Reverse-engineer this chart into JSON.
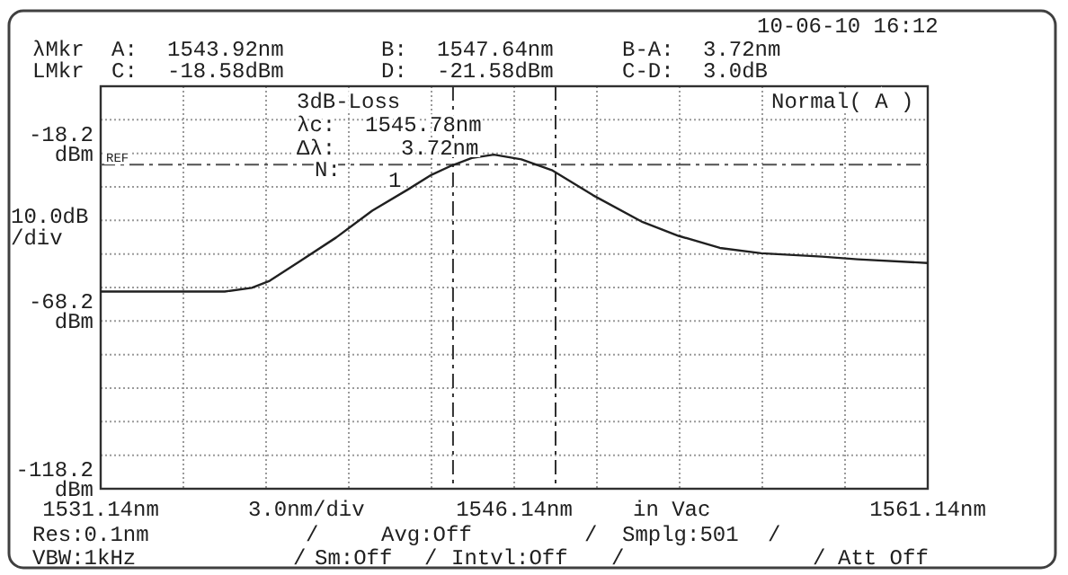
{
  "chart_data": {
    "type": "line",
    "x": [
      1531.14,
      1535.64,
      1536.62,
      1537.27,
      1538.38,
      1539.68,
      1540.99,
      1542.3,
      1543.14,
      1543.8,
      1544.6,
      1545.4,
      1546.4,
      1547.5,
      1549.0,
      1550.8,
      1552.1,
      1553.6,
      1555.1,
      1557.3,
      1558.6,
      1561.14
    ],
    "series": [
      {
        "color": "#202020",
        "values": [
          -59.4,
          -59.4,
          -58.3,
          -56.2,
          -50.3,
          -43.3,
          -35.3,
          -28.9,
          -24.6,
          -22.1,
          -19.6,
          -18.6,
          -20.0,
          -23.2,
          -30.7,
          -38.7,
          -42.8,
          -46.4,
          -48.0,
          -49.0,
          -49.8,
          -50.9
        ]
      }
    ],
    "xlim": [
      1531.14,
      1561.14
    ],
    "xticks": [
      {
        "value": 1531.14,
        "label": "1531.14nm"
      },
      {
        "value": 1534.14,
        "label": null
      },
      {
        "value": 1537.14,
        "label": null
      },
      {
        "value": 1540.14,
        "label": null
      },
      {
        "value": 1543.14,
        "label": null
      },
      {
        "value": 1546.14,
        "label": "1546.14nm"
      },
      {
        "value": 1549.14,
        "label": null
      },
      {
        "value": 1552.14,
        "label": null
      },
      {
        "value": 1555.14,
        "label": null
      },
      {
        "value": 1558.14,
        "label": null
      },
      {
        "value": 1561.14,
        "label": "1561.14nm"
      }
    ],
    "ylim": [
      -118.2,
      1.8
    ],
    "yticks": [
      {
        "value": -118.2,
        "label": "-118.2 dBm"
      },
      {
        "value": -108.2,
        "label": null
      },
      {
        "value": -98.2,
        "label": null
      },
      {
        "value": -88.2,
        "label": null
      },
      {
        "value": -78.2,
        "label": null
      },
      {
        "value": -68.2,
        "label": "-68.2 dBm"
      },
      {
        "value": -58.2,
        "label": null
      },
      {
        "value": -48.2,
        "label": null
      },
      {
        "value": -38.2,
        "label": null
      },
      {
        "value": -28.2,
        "label": null
      },
      {
        "value": -18.2,
        "label": "-18.2 dBm"
      },
      {
        "value": -8.2,
        "label": null
      },
      {
        "value": 1.8,
        "label": null
      }
    ],
    "grid": true,
    "marker": "none",
    "line_style": "solid",
    "xlabel": "3.0nm/div",
    "ylabel": "10.0dB/div",
    "ref_lines": [
      {
        "axis": "x",
        "value": 1543.92,
        "line_style": "dashed"
      },
      {
        "axis": "x",
        "value": 1547.64,
        "line_style": "dashed"
      },
      {
        "axis": "y",
        "value": -21.58,
        "line_style": "dashed"
      }
    ],
    "annotations": [
      "10-06-10 16:12",
      "λMkr",
      "A:",
      "1543.92nm",
      "B:",
      "1547.64nm",
      "B-A:",
      "3.72nm",
      "LMkr",
      "C:",
      "-18.58dBm",
      "D:",
      "-21.58dBm",
      "C-D:",
      "3.0dB",
      "3dB-Loss",
      "λc:",
      "1545.78nm",
      "Δλ:",
      "3.72nm",
      "N:",
      "1",
      "Normal( A )",
      "REF",
      "in Vac",
      "Res:0.1nm",
      "/",
      "Avg:Off",
      "/",
      "Smplg:501",
      "/",
      "VBW:1kHz",
      "/",
      "Sm:Off",
      "/",
      "Intvl:Off",
      "/",
      "/",
      "Att Off"
    ]
  }
}
